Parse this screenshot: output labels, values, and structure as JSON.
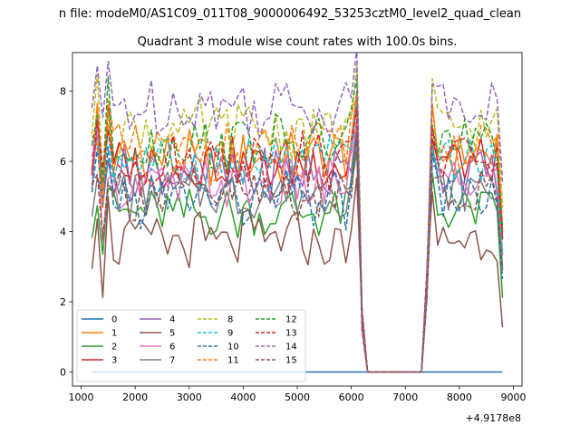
{
  "figure": {
    "suptitle": "n file: modeM0/AS1C09_011T08_9000006492_53253cztM0_level2_quad_clean",
    "title": "Quadrant 3 module wise count rates with 100.0s bins.",
    "x_offset_label": "+4.9178e8"
  },
  "chart_data": {
    "type": "line",
    "title": "Quadrant 3 module wise count rates with 100.0s bins.",
    "xlabel": "",
    "ylabel": "",
    "x_offset": 491780000,
    "xlim": [
      840,
      9160
    ],
    "ylim": [
      -0.4,
      9.1
    ],
    "xticks": [
      1000,
      2000,
      3000,
      4000,
      5000,
      6000,
      7000,
      8000,
      9000
    ],
    "yticks": [
      0,
      2,
      4,
      6,
      8
    ],
    "grid": false,
    "legend": {
      "placement": "lower-left",
      "columns": 4
    },
    "segments": [
      {
        "x_start": 1200,
        "x_end": 6100,
        "step": 100
      },
      {
        "x_start": 7500,
        "x_end": 8800,
        "step": 100
      }
    ],
    "gap": {
      "drop_x": 6200,
      "zero_start": 6300,
      "zero_end": 7300,
      "rise_x": 7400
    },
    "series": [
      {
        "name": "0",
        "color": "#1f77b4",
        "style": "solid",
        "base": 0.0
      },
      {
        "name": "1",
        "color": "#ff7f0e",
        "style": "solid",
        "base": 6.1
      },
      {
        "name": "2",
        "color": "#2ca02c",
        "style": "solid",
        "base": 4.5
      },
      {
        "name": "3",
        "color": "#d62728",
        "style": "solid",
        "base": 5.9
      },
      {
        "name": "4",
        "color": "#9467bd",
        "style": "solid",
        "base": 5.6
      },
      {
        "name": "5",
        "color": "#8c564b",
        "style": "solid",
        "base": 3.7
      },
      {
        "name": "6",
        "color": "#e377c2",
        "style": "solid",
        "base": 5.3
      },
      {
        "name": "7",
        "color": "#7f7f7f",
        "style": "solid",
        "base": 5.1
      },
      {
        "name": "8",
        "color": "#bcbd22",
        "style": "dashed",
        "base": 6.9
      },
      {
        "name": "9",
        "color": "#17becf",
        "style": "dashed",
        "base": 5.9
      },
      {
        "name": "10",
        "color": "#1f77b4",
        "style": "dashed",
        "base": 4.9
      },
      {
        "name": "11",
        "color": "#ff7f0e",
        "style": "dashed",
        "base": 6.3
      },
      {
        "name": "12",
        "color": "#2ca02c",
        "style": "dashed",
        "base": 6.5
      },
      {
        "name": "13",
        "color": "#d62728",
        "style": "dashed",
        "base": 6.0
      },
      {
        "name": "14",
        "color": "#9467bd",
        "style": "dashed",
        "base": 7.6
      },
      {
        "name": "15",
        "color": "#8c564b",
        "style": "dashed",
        "base": 5.1
      }
    ]
  }
}
